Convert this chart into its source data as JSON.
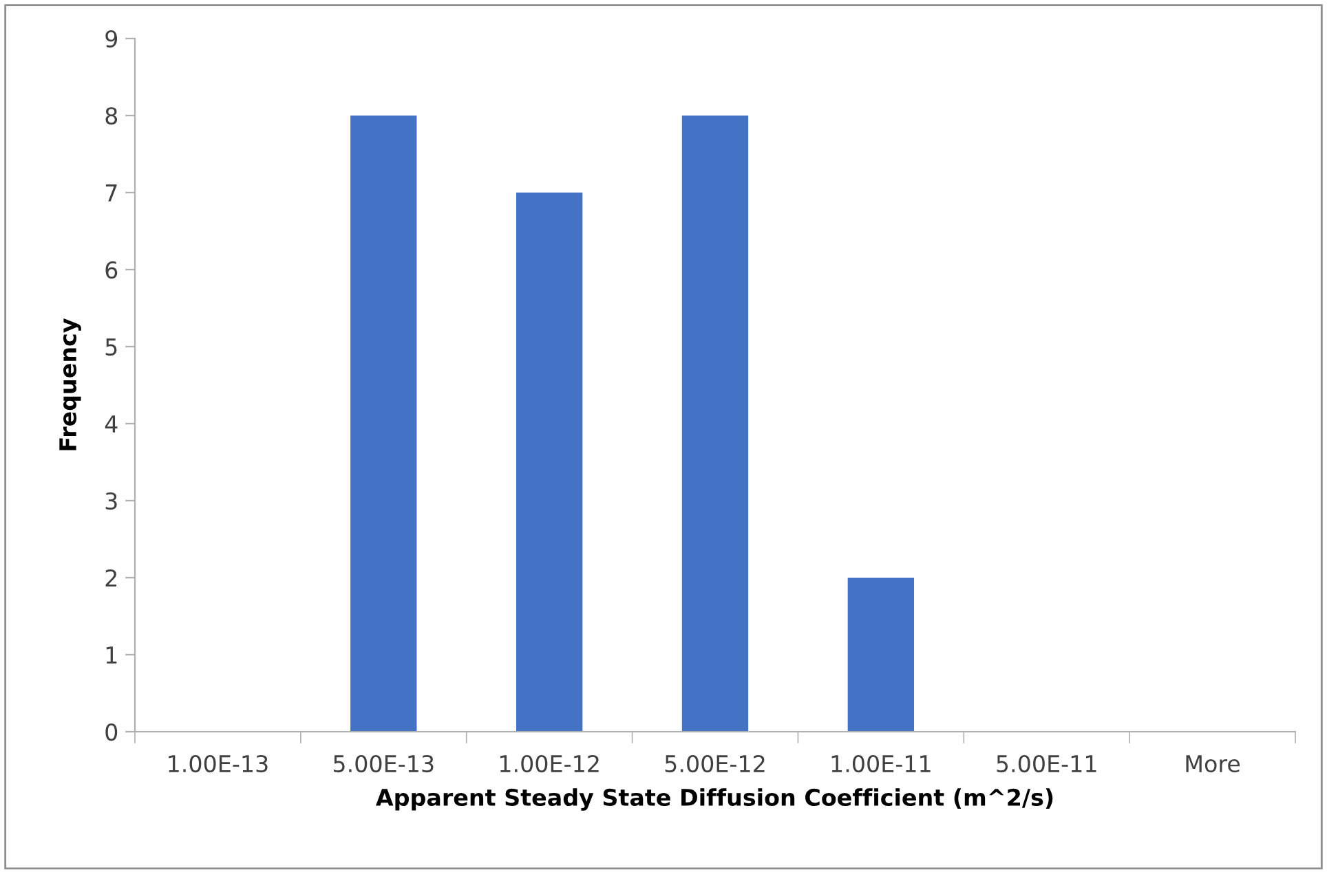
{
  "chart_data": {
    "type": "bar",
    "xlabel": "Apparent Steady State Diffusion Coefficient (m^2/s)",
    "ylabel": "Frequency",
    "categories": [
      "1.00E-13",
      "5.00E-13",
      "1.00E-12",
      "5.00E-12",
      "1.00E-11",
      "5.00E-11",
      "More"
    ],
    "values": [
      0,
      8,
      7,
      8,
      2,
      0,
      0
    ],
    "color": "#4472c4",
    "ylim": [
      0,
      9
    ],
    "yticks": [
      0,
      1,
      2,
      3,
      4,
      5,
      6,
      7,
      8,
      9
    ],
    "grid": false,
    "legend": false
  }
}
